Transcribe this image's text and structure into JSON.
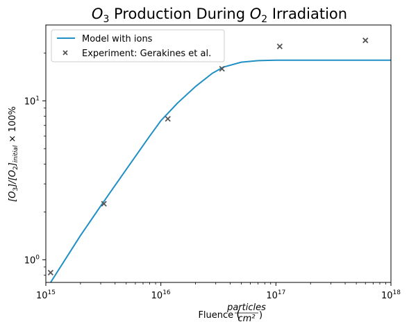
{
  "chart_data": {
    "type": "line",
    "title": "O3 Production During O2 Irradiation",
    "xlabel": "Fluence (particles/cm²)",
    "ylabel": "[O3]/[O2]initial × 100%",
    "xscale": "log",
    "yscale": "log",
    "xlim": [
      1000000000000000.0,
      1e+18
    ],
    "ylim": [
      0.72,
      30
    ],
    "xticks": [
      {
        "value": 1000000000000000.0,
        "base": "10",
        "exp": "15"
      },
      {
        "value": 1e+16,
        "base": "10",
        "exp": "16"
      },
      {
        "value": 1e+17,
        "base": "10",
        "exp": "17"
      },
      {
        "value": 1e+18,
        "base": "10",
        "exp": "18"
      }
    ],
    "yticks": [
      {
        "value": 1,
        "base": "10",
        "exp": "0"
      },
      {
        "value": 10,
        "base": "10",
        "exp": "1"
      }
    ],
    "legend_position": "top-left",
    "grid": false,
    "series": [
      {
        "name": "Model with ions",
        "kind": "line",
        "color": "#1f8fc4",
        "x": [
          1100000000000000.0,
          2000000000000000.0,
          3000000000000000.0,
          5000000000000000.0,
          8000000000000000.0,
          1e+16,
          1.4e+16,
          2e+16,
          2.8e+16,
          3.5e+16,
          5e+16,
          7e+16,
          1e+17,
          2e+17,
          5e+17,
          1e+18
        ],
        "y": [
          0.72,
          1.42,
          2.18,
          3.7,
          6.0,
          7.5,
          9.7,
          12.3,
          14.9,
          16.3,
          17.5,
          17.9,
          18.0,
          18.0,
          18.0,
          18.0
        ]
      },
      {
        "name": "Experiment: Gerakines et al.",
        "kind": "scatter",
        "marker": "x",
        "color": "#555555",
        "x": [
          1100000000000000.0,
          3200000000000000.0,
          1.15e+16,
          3.4e+16,
          1.08e+17,
          6e+17
        ],
        "y": [
          0.83,
          2.25,
          7.7,
          15.9,
          22.0,
          24.0
        ]
      }
    ]
  }
}
